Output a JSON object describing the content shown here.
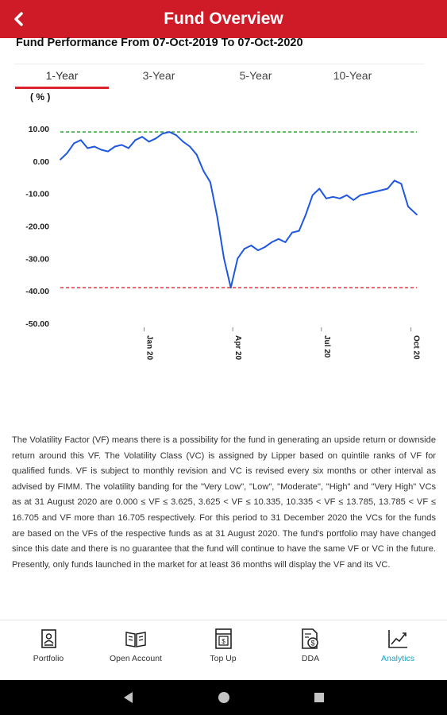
{
  "header": {
    "title": "Fund Overview",
    "back_icon": "chevron-left-icon"
  },
  "performance": {
    "title": "Fund Performance From 07-Oct-2019 To 07-Oct-2020"
  },
  "tabs": [
    {
      "label": "1-Year",
      "active": true
    },
    {
      "label": "3-Year",
      "active": false
    },
    {
      "label": "5-Year",
      "active": false
    },
    {
      "label": "10-Year",
      "active": false
    }
  ],
  "chart_data": {
    "type": "line",
    "y_unit_label": "( % )",
    "ylim": [
      -50,
      10
    ],
    "y_ticks": [
      "10.00",
      "0.00",
      "-10.00",
      "-20.00",
      "-30.00",
      "-40.00",
      "-50.00"
    ],
    "x_tick_labels": [
      "Jan 20",
      "Apr 20",
      "Jul 20",
      "Oct 20"
    ],
    "reference_lines": [
      {
        "value": 9,
        "color": "#1a9b1a",
        "style": "dashed"
      },
      {
        "value": -39,
        "color": "#e0242b",
        "style": "dashed"
      }
    ],
    "series": [
      {
        "color": "#1f57e0",
        "x": [
          "2019-10-07",
          "2019-10-14",
          "2019-10-21",
          "2019-10-28",
          "2019-11-04",
          "2019-11-11",
          "2019-11-18",
          "2019-11-25",
          "2019-12-02",
          "2019-12-09",
          "2019-12-16",
          "2019-12-23",
          "2019-12-30",
          "2020-01-06",
          "2020-01-13",
          "2020-01-20",
          "2020-01-27",
          "2020-02-03",
          "2020-02-10",
          "2020-02-17",
          "2020-02-24",
          "2020-03-02",
          "2020-03-09",
          "2020-03-16",
          "2020-03-23",
          "2020-03-30",
          "2020-04-06",
          "2020-04-13",
          "2020-04-20",
          "2020-04-27",
          "2020-05-04",
          "2020-05-11",
          "2020-05-18",
          "2020-05-25",
          "2020-06-01",
          "2020-06-08",
          "2020-06-15",
          "2020-06-22",
          "2020-06-29",
          "2020-07-06",
          "2020-07-13",
          "2020-07-20",
          "2020-07-27",
          "2020-08-03",
          "2020-08-10",
          "2020-08-17",
          "2020-08-24",
          "2020-08-31",
          "2020-09-07",
          "2020-09-14",
          "2020-09-21",
          "2020-09-28",
          "2020-10-07"
        ],
        "y": [
          0.5,
          2.5,
          5.5,
          6.5,
          4.0,
          4.5,
          3.5,
          3.0,
          4.5,
          5.0,
          4.0,
          6.5,
          7.5,
          6.0,
          7.0,
          8.5,
          9.0,
          8.0,
          6.0,
          4.5,
          2.0,
          -3.0,
          -6.5,
          -17.0,
          -30.0,
          -39.0,
          -30.0,
          -27.0,
          -26.0,
          -27.5,
          -26.5,
          -25.0,
          -24.0,
          -25.0,
          -22.0,
          -21.5,
          -16.5,
          -10.5,
          -8.5,
          -11.5,
          -11.0,
          -11.5,
          -10.5,
          -12.0,
          -10.5,
          -10.0,
          -9.5,
          -9.0,
          -8.5,
          -6.0,
          -7.0,
          -14.0,
          -16.5
        ]
      }
    ]
  },
  "description": "The Volatility Factor (VF) means there is a possibility for the fund in generating an upside return or downside return around this VF. The Volatility Class (VC) is assigned by Lipper based on quintile ranks of VF for qualified funds. VF is subject to monthly revision and VC is revised every six months or other interval as advised by FIMM. The volatility banding for the \"Very Low\", \"Low\", \"Moderate\", \"High\" and \"Very High\" VCs as at 31 August 2020 are 0.000 ≤ VF ≤ 3.625, 3.625 < VF ≤ 10.335, 10.335 < VF ≤ 13.785, 13.785 < VF ≤ 16.705 and VF more than 16.705 respectively. For this period to 31 December 2020 the VCs for the funds are based on the VFs of the respective funds as at 31 August 2020. The fund's portfolio may have changed since this date and there is no guarantee that the fund will continue to have the same VF or VC in the future. Presently, only funds launched in the market for at least 36 months will display the VF and its VC.",
  "bottom_nav": [
    {
      "label": "Portfolio",
      "icon": "portfolio-icon",
      "active": false
    },
    {
      "label": "Open Account",
      "icon": "open-account-icon",
      "active": false
    },
    {
      "label": "Top Up",
      "icon": "top-up-icon",
      "active": false
    },
    {
      "label": "DDA",
      "icon": "dda-icon",
      "active": false
    },
    {
      "label": "Analytics",
      "icon": "analytics-icon",
      "active": true
    }
  ],
  "colors": {
    "brand": "#cf1b27",
    "active_tab_underline": "#d9232e",
    "analytics_active": "#1aa4c3",
    "line": "#1f57e0"
  }
}
